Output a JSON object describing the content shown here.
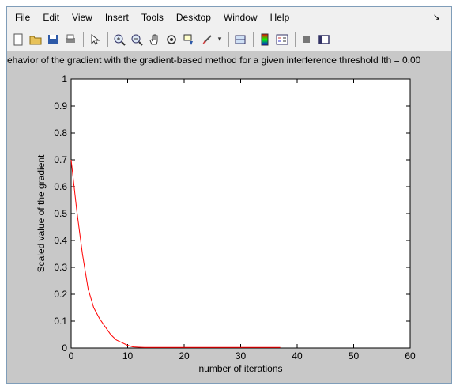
{
  "window": {
    "menu": [
      "File",
      "Edit",
      "View",
      "Insert",
      "Tools",
      "Desktop",
      "Window",
      "Help"
    ],
    "menu_arrow": "↘",
    "toolbar_icons": [
      "new-figure-icon",
      "open-file-icon",
      "save-icon",
      "print-icon",
      "pointer-icon",
      "zoom-in-icon",
      "zoom-out-icon",
      "pan-icon",
      "rotate-icon",
      "data-cursor-icon",
      "brush-icon",
      "link-icon",
      "colorbar-icon",
      "legend-icon",
      "hide-plot-tools-icon",
      "show-plot-tools-icon"
    ]
  },
  "chart_data": {
    "type": "line",
    "title": "ehavior of the gradient with the gradient-based method for a given interference threshold Ith = 0.00",
    "xlabel": "number of iterations",
    "ylabel": "Scaled value of the gradient",
    "xlim": [
      0,
      60
    ],
    "ylim": [
      0,
      1
    ],
    "xticks": [
      "0",
      "10",
      "20",
      "30",
      "40",
      "50",
      "60"
    ],
    "yticks": [
      "0",
      "0.1",
      "0.2",
      "0.3",
      "0.4",
      "0.5",
      "0.6",
      "0.7",
      "0.8",
      "0.9",
      "1"
    ],
    "grid": false,
    "series": [
      {
        "color": "#ff0000",
        "x": [
          0,
          1,
          2,
          3,
          4,
          5,
          6,
          7,
          8,
          9,
          10,
          11,
          12,
          13,
          14,
          15,
          16,
          17,
          18,
          19,
          20,
          21,
          22,
          23,
          24,
          25,
          26,
          27,
          28,
          29,
          30,
          31,
          32,
          33,
          34,
          35,
          36,
          37
        ],
        "y": [
          0.7,
          0.51,
          0.35,
          0.22,
          0.15,
          0.11,
          0.08,
          0.05,
          0.03,
          0.02,
          0.01,
          0.004,
          0.003,
          0.002,
          0.002,
          0.002,
          0.002,
          0.002,
          0.002,
          0.002,
          0.002,
          0.002,
          0.002,
          0.002,
          0.002,
          0.002,
          0.002,
          0.002,
          0.002,
          0.002,
          0.002,
          0.002,
          0.002,
          0.002,
          0.002,
          0.002,
          0.002,
          0.002
        ]
      }
    ]
  }
}
